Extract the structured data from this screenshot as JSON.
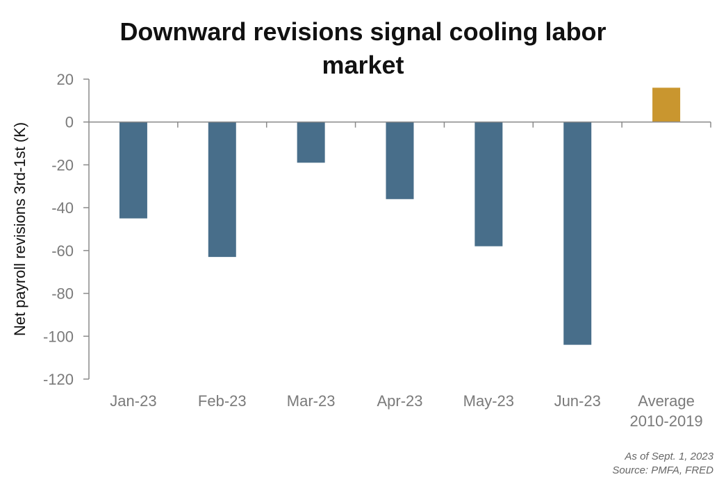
{
  "chart_data": {
    "type": "bar",
    "title": [
      "Downward revisions signal cooling labor",
      "market"
    ],
    "ylabel": "Net payroll revisions 3rd-1st (K)",
    "xlabel": "",
    "ylim": [
      -120,
      20
    ],
    "yticks": [
      20,
      0,
      -20,
      -40,
      -60,
      -80,
      -100,
      -120
    ],
    "categories": [
      [
        "Jan-23"
      ],
      [
        "Feb-23"
      ],
      [
        "Mar-23"
      ],
      [
        "Apr-23"
      ],
      [
        "May-23"
      ],
      [
        "Jun-23"
      ],
      [
        "Average",
        "2010-2019"
      ]
    ],
    "values": [
      -45,
      -63,
      -19,
      -36,
      -58,
      -104,
      16
    ],
    "bar_colors": [
      "#486e8a",
      "#486e8a",
      "#486e8a",
      "#486e8a",
      "#486e8a",
      "#486e8a",
      "#c9962f"
    ],
    "grid": false,
    "legend": "none"
  },
  "footnote": {
    "as_of": "As of Sept. 1, 2023",
    "source": "Source: PMFA, FRED"
  }
}
